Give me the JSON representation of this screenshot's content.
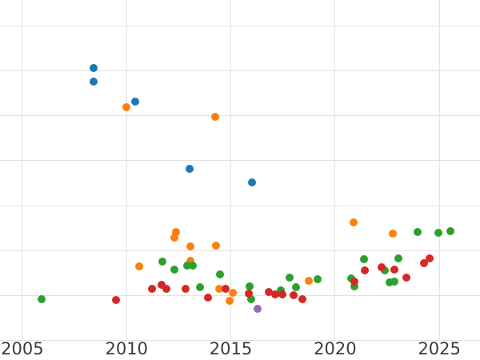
{
  "chart_data": {
    "type": "scatter",
    "title": "",
    "xlabel": "",
    "ylabel": "",
    "x_tick_labels": [
      "2005",
      "2010",
      "2015",
      "2020",
      "2025"
    ],
    "x_ticks": [
      2005,
      2010,
      2015,
      2020,
      2025
    ],
    "x_range": [
      2003.93,
      2026.95
    ],
    "y_gridline_units": [
      0,
      1,
      2,
      3,
      4,
      5,
      6,
      7
    ],
    "y_range": [
      -0.43,
      7.57
    ],
    "y_axis_note": "y-axis tick labels are cropped out of the visible image; y values are expressed in gridline units counted up from the lowest visible horizontal gridline",
    "grid": true,
    "legend": "none",
    "marker_diameter_px": 10,
    "series": [
      {
        "name": "series-blue",
        "color": "#1f77b4",
        "points": [
          [
            2008.41,
            6.06
          ],
          [
            2008.41,
            5.76
          ],
          [
            2010.41,
            5.31
          ],
          [
            2013.02,
            3.82
          ],
          [
            2016.01,
            3.52
          ]
        ]
      },
      {
        "name": "series-orange",
        "color": "#ff7f0e",
        "points": [
          [
            2010.0,
            5.19
          ],
          [
            2014.24,
            4.97
          ],
          [
            2012.36,
            2.42
          ],
          [
            2012.29,
            2.29
          ],
          [
            2013.06,
            2.1
          ],
          [
            2014.28,
            2.11
          ],
          [
            2010.6,
            1.65
          ],
          [
            2013.06,
            1.78
          ],
          [
            2014.44,
            1.15
          ],
          [
            2015.09,
            1.07
          ],
          [
            2014.93,
            0.89
          ],
          [
            2018.73,
            1.33
          ],
          [
            2020.88,
            2.63
          ],
          [
            2022.76,
            2.38
          ]
        ]
      },
      {
        "name": "series-green",
        "color": "#2ca02c",
        "points": [
          [
            2005.92,
            0.92
          ],
          [
            2011.71,
            1.76
          ],
          [
            2012.29,
            1.58
          ],
          [
            2012.9,
            1.67
          ],
          [
            2013.17,
            1.67
          ],
          [
            2013.51,
            1.19
          ],
          [
            2014.47,
            1.47
          ],
          [
            2015.89,
            1.21
          ],
          [
            2015.97,
            0.92
          ],
          [
            2017.39,
            1.12
          ],
          [
            2017.81,
            1.4
          ],
          [
            2018.12,
            1.19
          ],
          [
            2019.15,
            1.37
          ],
          [
            2020.76,
            1.39
          ],
          [
            2020.92,
            1.21
          ],
          [
            2021.38,
            1.81
          ],
          [
            2022.38,
            1.56
          ],
          [
            2022.61,
            1.3
          ],
          [
            2022.84,
            1.31
          ],
          [
            2023.03,
            1.83
          ],
          [
            2023.95,
            2.42
          ],
          [
            2024.95,
            2.4
          ],
          [
            2025.52,
            2.43
          ]
        ]
      },
      {
        "name": "series-red",
        "color": "#d62728",
        "points": [
          [
            2009.49,
            0.91
          ],
          [
            2011.21,
            1.15
          ],
          [
            2011.67,
            1.24
          ],
          [
            2011.9,
            1.15
          ],
          [
            2012.82,
            1.15
          ],
          [
            2013.9,
            0.96
          ],
          [
            2014.74,
            1.15
          ],
          [
            2015.86,
            1.05
          ],
          [
            2016.81,
            1.08
          ],
          [
            2017.12,
            1.03
          ],
          [
            2017.47,
            1.03
          ],
          [
            2018.0,
            1.01
          ],
          [
            2018.43,
            0.92
          ],
          [
            2020.92,
            1.31
          ],
          [
            2021.42,
            1.56
          ],
          [
            2022.22,
            1.63
          ],
          [
            2022.84,
            1.58
          ],
          [
            2023.41,
            1.4
          ],
          [
            2024.26,
            1.72
          ],
          [
            2024.53,
            1.83
          ]
        ]
      },
      {
        "name": "series-purple",
        "color": "#9467bd",
        "points": [
          [
            2016.28,
            0.71
          ]
        ]
      }
    ]
  },
  "styles": {
    "background": "#ffffff",
    "grid_color": "#e2e2e2",
    "tick_label_color": "#3c3c3c"
  }
}
